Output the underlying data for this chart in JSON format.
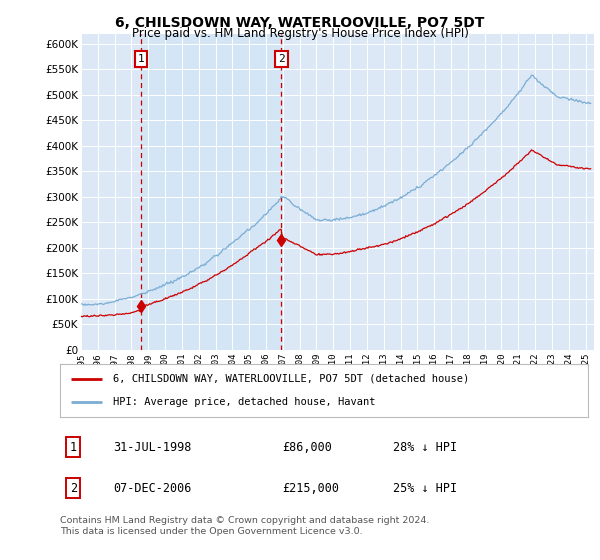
{
  "title": "6, CHILSDOWN WAY, WATERLOOVILLE, PO7 5DT",
  "subtitle": "Price paid vs. HM Land Registry's House Price Index (HPI)",
  "legend_line1": "6, CHILSDOWN WAY, WATERLOOVILLE, PO7 5DT (detached house)",
  "legend_line2": "HPI: Average price, detached house, Havant",
  "annotation1_date": "31-JUL-1998",
  "annotation1_price": "£86,000",
  "annotation1_hpi": "28% ↓ HPI",
  "annotation2_date": "07-DEC-2006",
  "annotation2_price": "£215,000",
  "annotation2_hpi": "25% ↓ HPI",
  "footnote": "Contains HM Land Registry data © Crown copyright and database right 2024.\nThis data is licensed under the Open Government Licence v3.0.",
  "sale1_year": 1998.58,
  "sale1_value": 86000,
  "sale2_year": 2006.92,
  "sale2_value": 215000,
  "hpi_color": "#7aadd4",
  "price_color": "#cc0000",
  "background_color": "#dce8f5",
  "shade_color": "#d0e4f5",
  "annotation_box_color": "#cc0000",
  "ylim": [
    0,
    620000
  ],
  "xlim_start": 1995.0,
  "xlim_end": 2025.5,
  "ytick_values": [
    0,
    50000,
    100000,
    150000,
    200000,
    250000,
    300000,
    350000,
    400000,
    450000,
    500000,
    550000,
    600000
  ],
  "xtick_years": [
    1995,
    1996,
    1997,
    1998,
    1999,
    2000,
    2001,
    2002,
    2003,
    2004,
    2005,
    2006,
    2007,
    2008,
    2009,
    2010,
    2011,
    2012,
    2013,
    2014,
    2015,
    2016,
    2017,
    2018,
    2019,
    2020,
    2021,
    2022,
    2023,
    2024,
    2025
  ]
}
